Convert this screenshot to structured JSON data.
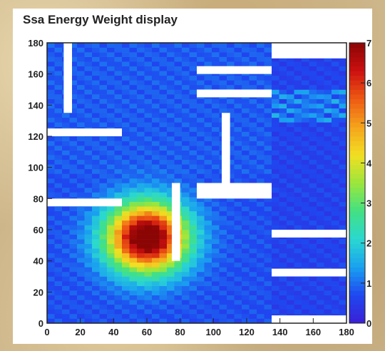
{
  "chart_data": {
    "type": "heatmap",
    "title": "Ssa Energy Weight display",
    "xlabel": "",
    "ylabel": "",
    "xlim": [
      0,
      180
    ],
    "ylim": [
      0,
      180
    ],
    "x_ticks": [
      0,
      20,
      40,
      60,
      80,
      100,
      120,
      140,
      160,
      180
    ],
    "y_ticks": [
      0,
      20,
      40,
      60,
      80,
      100,
      120,
      140,
      160,
      180
    ],
    "colorbar": {
      "min": 0,
      "max": 7,
      "ticks": [
        0,
        1,
        2,
        3,
        4,
        5,
        6,
        7
      ],
      "colors": [
        "#3c1fd6",
        "#1f47f0",
        "#1aa0f0",
        "#2ad8d0",
        "#43e083",
        "#9be63c",
        "#f2df22",
        "#f5a41d",
        "#ee5a13",
        "#cc1010",
        "#8c0505"
      ]
    },
    "hotspot_estimate": {
      "x": 60,
      "y": 55,
      "value": 7
    },
    "empty_regions": [
      {
        "x": [
          10,
          15
        ],
        "y": [
          135,
          180
        ]
      },
      {
        "x": [
          90,
          135
        ],
        "y": [
          160,
          165
        ]
      },
      {
        "x": [
          90,
          135
        ],
        "y": [
          145,
          150
        ]
      },
      {
        "x": [
          135,
          180
        ],
        "y": [
          170,
          180
        ]
      },
      {
        "x": [
          0,
          45
        ],
        "y": [
          120,
          125
        ]
      },
      {
        "x": [
          105,
          110
        ],
        "y": [
          90,
          135
        ]
      },
      {
        "x": [
          90,
          135
        ],
        "y": [
          80,
          90
        ]
      },
      {
        "x": [
          0,
          45
        ],
        "y": [
          75,
          80
        ]
      },
      {
        "x": [
          75,
          80
        ],
        "y": [
          40,
          90
        ]
      },
      {
        "x": [
          135,
          180
        ],
        "y": [
          55,
          60
        ]
      },
      {
        "x": [
          135,
          180
        ],
        "y": [
          30,
          35
        ]
      },
      {
        "x": [
          135,
          180
        ],
        "y": [
          0,
          5
        ]
      }
    ]
  }
}
